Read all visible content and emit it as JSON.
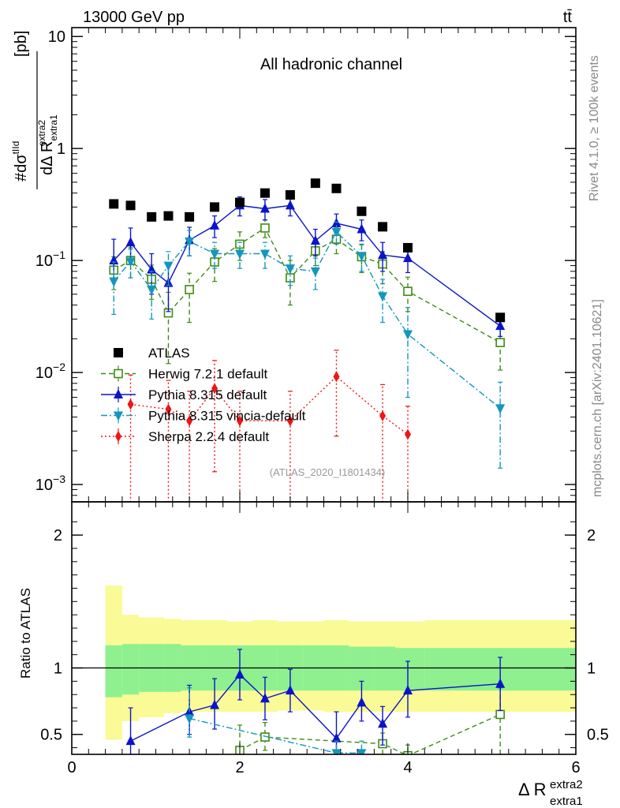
{
  "header": {
    "energy_label": "13000 GeV pp",
    "process_label": "tt̄"
  },
  "side_labels": {
    "rivet": "Rivet 4.1.0, ≥ 100k events",
    "mcplots": "mcplots.cern.ch [arXiv:2401.10621]"
  },
  "colors": {
    "atlas": "#000000",
    "herwig": "#3c8c14",
    "pythia": "#0a14c8",
    "vincia": "#1496be",
    "sherpa": "#f01414",
    "band_inner": "#8ef08e",
    "band_outer": "#fafa96"
  },
  "chart_data": [
    {
      "type": "scatter",
      "title": "All hadronic channel",
      "analysis_label": "(ATLAS_2020_I1801434)",
      "yscale": "log",
      "ylabel_main": "#dσ",
      "ylabel_sup": "tIId",
      "ylabel_den": "dΔ R",
      "ylabel_den_sub": "extra1",
      "ylabel_den_sup": "extra2",
      "ylabel_unit": "[pb]",
      "xlim": [
        0,
        6
      ],
      "ylim": [
        0.0007,
        12
      ],
      "y_ticks": [
        {
          "value": 10,
          "label": "10"
        },
        {
          "value": 1,
          "label": "1"
        },
        {
          "value": 0.1,
          "label": "10",
          "exp": "−1"
        },
        {
          "value": 0.01,
          "label": "10",
          "exp": "−2"
        },
        {
          "value": 0.001,
          "label": "10",
          "exp": "−3"
        }
      ],
      "series": [
        {
          "name": "ATLAS",
          "key": "atlas",
          "marker": "square-filled",
          "line": "none",
          "x": [
            0.5,
            0.7,
            0.95,
            1.15,
            1.4,
            1.7,
            2.0,
            2.3,
            2.6,
            2.9,
            3.15,
            3.45,
            3.7,
            4.0,
            5.1
          ],
          "y": [
            0.32,
            0.31,
            0.245,
            0.25,
            0.245,
            0.3,
            0.33,
            0.4,
            0.385,
            0.49,
            0.44,
            0.275,
            0.2,
            0.13,
            0.031
          ]
        },
        {
          "name": "Herwig 7.2.1 default",
          "key": "herwig",
          "marker": "square-open",
          "line": "dashed",
          "x": [
            0.5,
            0.7,
            0.95,
            1.15,
            1.4,
            1.7,
            2.0,
            2.3,
            2.6,
            2.9,
            3.15,
            3.45,
            3.7,
            4.0,
            5.1
          ],
          "y": [
            0.082,
            0.1,
            0.068,
            0.034,
            0.055,
            0.097,
            0.14,
            0.195,
            0.07,
            0.122,
            0.155,
            0.108,
            0.093,
            0.053,
            0.0185
          ],
          "ylo": [
            0.055,
            0.07,
            0.045,
            0.012,
            0.028,
            0.065,
            0.1,
            0.16,
            0.04,
            0.09,
            0.115,
            0.078,
            0.062,
            0.035,
            0.0105
          ],
          "yhi": [
            0.108,
            0.13,
            0.091,
            0.052,
            0.077,
            0.128,
            0.18,
            0.23,
            0.1,
            0.156,
            0.195,
            0.138,
            0.12,
            0.071,
            0.0258
          ]
        },
        {
          "name": "Pythia 8.315 default",
          "key": "pythia",
          "marker": "triangle-up",
          "line": "solid",
          "x": [
            0.5,
            0.7,
            0.95,
            1.15,
            1.4,
            1.7,
            2.0,
            2.3,
            2.6,
            2.9,
            3.15,
            3.45,
            3.7,
            4.0,
            5.1
          ],
          "y": [
            0.1,
            0.145,
            0.083,
            0.063,
            0.152,
            0.205,
            0.31,
            0.29,
            0.31,
            0.15,
            0.215,
            0.19,
            0.112,
            0.105,
            0.026
          ],
          "ylo": [
            0.065,
            0.1,
            0.05,
            0.035,
            0.11,
            0.16,
            0.25,
            0.23,
            0.25,
            0.11,
            0.175,
            0.15,
            0.08,
            0.078,
            0.021
          ],
          "yhi": [
            0.155,
            0.195,
            0.115,
            0.09,
            0.198,
            0.25,
            0.37,
            0.35,
            0.37,
            0.19,
            0.26,
            0.23,
            0.145,
            0.135,
            0.032
          ]
        },
        {
          "name": "Pythia 8.315 vincia-default",
          "key": "vincia",
          "marker": "triangle-down",
          "line": "dashdot",
          "x": [
            0.5,
            0.7,
            0.95,
            1.15,
            1.4,
            1.7,
            2.0,
            2.3,
            2.6,
            2.9,
            3.15,
            3.45,
            3.7,
            4.0,
            5.1
          ],
          "y": [
            0.065,
            0.098,
            0.055,
            0.09,
            0.148,
            0.115,
            0.115,
            0.115,
            0.085,
            0.08,
            0.18,
            0.11,
            0.048,
            0.022,
            0.0048
          ],
          "ylo": [
            0.033,
            0.07,
            0.03,
            0.06,
            0.11,
            0.085,
            0.085,
            0.085,
            0.06,
            0.055,
            0.14,
            0.08,
            0.028,
            0.006,
            0.0014
          ],
          "yhi": [
            0.097,
            0.126,
            0.08,
            0.12,
            0.186,
            0.145,
            0.145,
            0.145,
            0.11,
            0.105,
            0.22,
            0.14,
            0.068,
            0.038,
            0.0082
          ]
        },
        {
          "name": "Sherpa 2.2.4 default",
          "key": "sherpa",
          "marker": "diamond",
          "line": "dotted",
          "x": [
            0.7,
            1.15,
            1.4,
            1.7,
            2.0,
            2.6,
            3.15,
            3.7,
            4.0
          ],
          "y": [
            0.0052,
            0.0047,
            0.0037,
            0.0072,
            0.0037,
            0.0037,
            0.0092,
            0.0041,
            0.0028
          ],
          "ylo": [
            0.0005,
            0.0005,
            0.0005,
            0.0013,
            0.0005,
            0.0005,
            0.0027,
            0.0005,
            0.0005
          ],
          "yhi": [
            0.0095,
            0.0085,
            0.0068,
            0.0128,
            0.0068,
            0.0068,
            0.0158,
            0.0078,
            0.005
          ]
        }
      ]
    },
    {
      "type": "scatter",
      "title": "",
      "ylabel": "Ratio to ATLAS",
      "xlabel": "Δ R",
      "xlabel_sub": "extra1",
      "xlabel_sup": "extra2",
      "xlim": [
        0,
        6
      ],
      "ylim": [
        0.35,
        2.25
      ],
      "x_ticks": [
        0,
        2,
        4,
        6
      ],
      "y_ticks": [
        {
          "value": 2,
          "label": "2"
        },
        {
          "value": 1,
          "label": "1"
        },
        {
          "value": 0.5,
          "label": "0.5"
        }
      ],
      "bins": [
        {
          "xlo": 0.4,
          "xhi": 0.6,
          "inner": [
            0.78,
            1.17
          ],
          "outer": [
            0.46,
            1.62
          ]
        },
        {
          "xlo": 0.6,
          "xhi": 0.8,
          "inner": [
            0.8,
            1.18
          ],
          "outer": [
            0.6,
            1.4
          ]
        },
        {
          "xlo": 0.8,
          "xhi": 1.1,
          "inner": [
            0.82,
            1.18
          ],
          "outer": [
            0.63,
            1.38
          ]
        },
        {
          "xlo": 1.1,
          "xhi": 1.3,
          "inner": [
            0.82,
            1.18
          ],
          "outer": [
            0.66,
            1.37
          ]
        },
        {
          "xlo": 1.3,
          "xhi": 1.55,
          "inner": [
            0.83,
            1.17
          ],
          "outer": [
            0.67,
            1.36
          ]
        },
        {
          "xlo": 1.55,
          "xhi": 1.85,
          "inner": [
            0.83,
            1.17
          ],
          "outer": [
            0.67,
            1.36
          ]
        },
        {
          "xlo": 1.85,
          "xhi": 2.15,
          "inner": [
            0.83,
            1.17
          ],
          "outer": [
            0.67,
            1.35
          ]
        },
        {
          "xlo": 2.15,
          "xhi": 2.45,
          "inner": [
            0.83,
            1.17
          ],
          "outer": [
            0.67,
            1.36
          ]
        },
        {
          "xlo": 2.45,
          "xhi": 2.75,
          "inner": [
            0.83,
            1.17
          ],
          "outer": [
            0.68,
            1.35
          ]
        },
        {
          "xlo": 2.75,
          "xhi": 3.0,
          "inner": [
            0.83,
            1.17
          ],
          "outer": [
            0.68,
            1.35
          ]
        },
        {
          "xlo": 3.0,
          "xhi": 3.3,
          "inner": [
            0.83,
            1.17
          ],
          "outer": [
            0.67,
            1.36
          ]
        },
        {
          "xlo": 3.3,
          "xhi": 3.6,
          "inner": [
            0.83,
            1.16
          ],
          "outer": [
            0.67,
            1.35
          ]
        },
        {
          "xlo": 3.6,
          "xhi": 3.85,
          "inner": [
            0.83,
            1.16
          ],
          "outer": [
            0.67,
            1.35
          ]
        },
        {
          "xlo": 3.85,
          "xhi": 4.2,
          "inner": [
            0.83,
            1.15
          ],
          "outer": [
            0.67,
            1.35
          ]
        },
        {
          "xlo": 4.2,
          "xhi": 6.0,
          "inner": [
            0.83,
            1.15
          ],
          "outer": [
            0.67,
            1.36
          ]
        }
      ],
      "series": [
        {
          "name": "Herwig 7.2.1 default",
          "key": "herwig",
          "marker": "square-open",
          "line": "dashed",
          "x": [
            2.0,
            2.3,
            3.7,
            4.0,
            5.1
          ],
          "y": [
            0.38,
            0.48,
            0.43,
            0.34,
            0.65
          ],
          "ylo": [
            0.24,
            0.38,
            0.35,
            0.25,
            0.35
          ],
          "yhi": [
            0.57,
            0.59,
            0.51,
            0.42,
            0.85
          ]
        },
        {
          "name": "Pythia 8.315 default",
          "key": "pythia",
          "marker": "triangle-up",
          "line": "solid",
          "x": [
            0.7,
            1.4,
            1.7,
            2.0,
            2.3,
            2.6,
            3.15,
            3.45,
            3.7,
            4.0,
            5.1
          ],
          "y": [
            0.45,
            0.67,
            0.72,
            0.95,
            0.77,
            0.83,
            0.47,
            0.74,
            0.58,
            0.83,
            0.88
          ],
          "ylo": [
            0.33,
            0.5,
            0.54,
            0.76,
            0.61,
            0.67,
            0.36,
            0.6,
            0.42,
            0.63,
            0.68
          ],
          "yhi": [
            0.7,
            0.87,
            0.92,
            1.14,
            0.93,
            0.99,
            0.67,
            0.9,
            0.71,
            1.05,
            1.08
          ]
        },
        {
          "name": "Pythia 8.315 vincia-default",
          "key": "vincia",
          "marker": "triangle-down",
          "line": "dashdot",
          "x": [
            1.4,
            3.15,
            3.45
          ],
          "y": [
            0.62,
            0.36,
            0.36
          ],
          "ylo": [
            0.48,
            0.28,
            0.28
          ],
          "yhi": [
            0.85,
            0.45,
            0.45
          ]
        }
      ]
    }
  ]
}
